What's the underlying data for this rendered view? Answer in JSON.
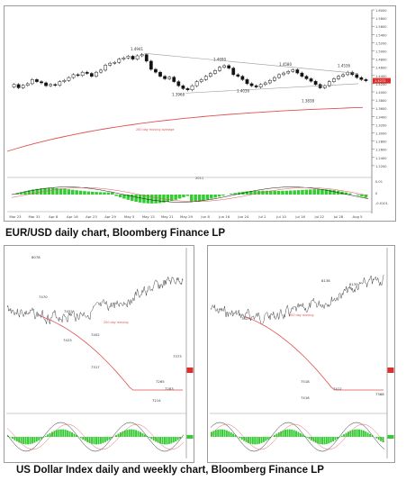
{
  "charts": [
    {
      "chart_data": {
        "type": "candlestick",
        "ylim": [
          1.2,
          1.6
        ],
        "y_ticks": [
          "1.6000",
          "1.5800",
          "1.5600",
          "1.5400",
          "1.5200",
          "1.5000",
          "1.4800",
          "1.4600",
          "1.4400",
          "1.4200",
          "1.4000",
          "1.3800",
          "1.3600",
          "1.3400",
          "1.3200",
          "1.3000",
          "1.2800",
          "1.2600",
          "1.2400",
          "1.2200"
        ],
        "x_ticks": [
          "Mar 23",
          "Mar 31",
          "Apr 8",
          "Apr 16",
          "Apr 23",
          "Apr 29",
          "May 5",
          "May 13",
          "May 21",
          "May 29",
          "Jun 8",
          "Jun 16",
          "Jun 24",
          "Jul 2",
          "Jul 10",
          "Jul 16",
          "Jul 22",
          "Jul 28",
          "Aug 5"
        ],
        "year_label": "2011",
        "price_annotations": [
          "1.4941",
          "1.4690",
          "1.4580",
          "1.4536",
          "1.3968",
          "1.4036",
          "1.3838"
        ],
        "ma_label": "200 day moving average",
        "last_price": "1.4272",
        "macd_ticks": [
          "0.01",
          "0",
          "-0.0101"
        ]
      }
    },
    {
      "chart_data": {
        "type": "line",
        "annotations": [
          "8078",
          "7470",
          "7452",
          "7423",
          "7402",
          "7317",
          "7214",
          "7265",
          "7283",
          "7373"
        ],
        "ma_label": "200 day moving"
      }
    },
    {
      "chart_data": {
        "type": "line",
        "annotations": [
          "8138",
          "8139",
          "7823",
          "7518",
          "7416",
          "7412",
          "7368"
        ],
        "ma_label": "200 day moving"
      }
    }
  ],
  "captions": {
    "top": "EUR/USD daily chart, Bloomberg Finance LP",
    "bottom": "US Dollar Index daily and weekly chart, Bloomberg Finance LP"
  },
  "colors": {
    "candle_up": "#ffffff",
    "candle_down": "#111111",
    "ma": "#e05050",
    "macd_pos": "#33cc33",
    "macd_neg": "#e05050"
  }
}
